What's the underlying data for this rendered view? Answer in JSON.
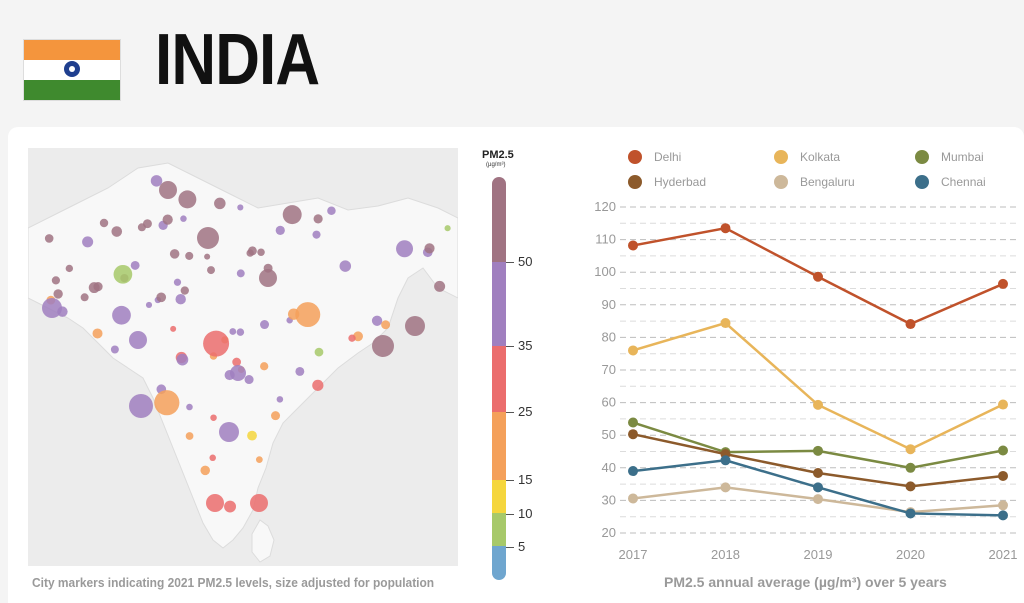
{
  "header": {
    "country": "INDIA",
    "flag_colors": {
      "saffron": "#f4953d",
      "white": "#ffffff",
      "green": "#3f8a2e",
      "chakra": "#1f3f8f"
    }
  },
  "map": {
    "caption": "City markers indicating 2021 PM2.5 levels, size adjusted for population",
    "legend": {
      "title": "PM2.5",
      "unit": "(µg/m³)",
      "ticks": [
        "50",
        "35",
        "25",
        "15",
        "10",
        "5"
      ],
      "colors": {
        "over50": "#a07382",
        "35-50": "#a07fbf",
        "25-35": "#eb6d6d",
        "15-25": "#f4a05a",
        "10-15": "#f5d63d",
        "5-10": "#a7c96a",
        "under5": "#6fa6cf"
      }
    }
  },
  "chart_data": {
    "type": "line",
    "title": "",
    "caption": "PM2.5 annual average (µg/m³) over 5 years",
    "xlabel": "",
    "ylabel": "",
    "x": [
      "2017",
      "2018",
      "2019",
      "2020",
      "2021"
    ],
    "yticks": [
      "120",
      "110",
      "100",
      "90",
      "80",
      "70",
      "60",
      "50",
      "40",
      "30",
      "20"
    ],
    "ylim": [
      20,
      120
    ],
    "grid": true,
    "legend_position": "top",
    "series": [
      {
        "name": "Delhi",
        "color": "#c0522b",
        "values": [
          108.2,
          113.5,
          98.6,
          84.1,
          96.4
        ]
      },
      {
        "name": "Kolkata",
        "color": "#e8b55a",
        "values": [
          76.0,
          84.4,
          59.3,
          45.7,
          59.4
        ]
      },
      {
        "name": "Mumbai",
        "color": "#7b8a42",
        "values": [
          53.9,
          44.8,
          45.2,
          40.0,
          45.3
        ]
      },
      {
        "name": "Hyderbad",
        "color": "#8c5a2b",
        "values": [
          50.3,
          44.2,
          38.4,
          34.3,
          37.5
        ]
      },
      {
        "name": "Bengaluru",
        "color": "#cdb89a",
        "values": [
          30.6,
          34.0,
          30.4,
          26.4,
          28.5
        ]
      },
      {
        "name": "Chennai",
        "color": "#3c6f8a",
        "values": [
          39.0,
          42.3,
          34.0,
          26.0,
          25.4
        ]
      }
    ]
  }
}
